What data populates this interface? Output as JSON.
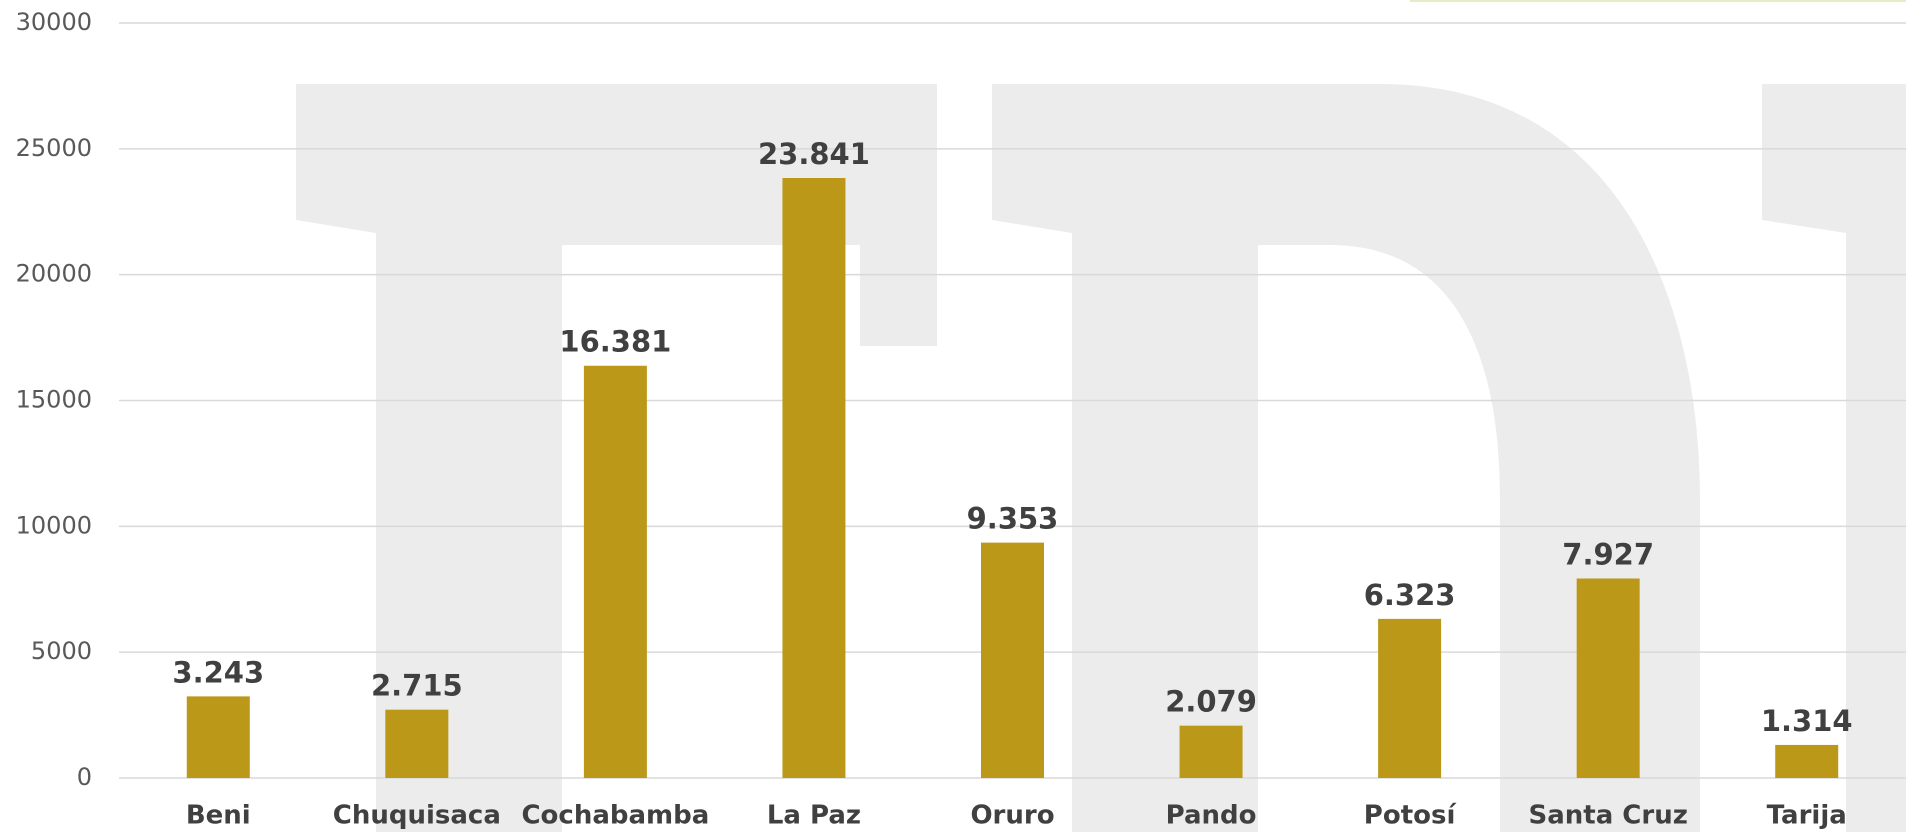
{
  "chart_data": {
    "type": "bar",
    "categories": [
      "Beni",
      "Chuquisaca",
      "Cochabamba",
      "La Paz",
      "Oruro",
      "Pando",
      "Potosí",
      "Santa Cruz",
      "Tarija"
    ],
    "values": [
      3243,
      2715,
      16381,
      23841,
      9353,
      2079,
      6323,
      7927,
      1314
    ],
    "value_labels": [
      "3.243",
      "2.715",
      "16.381",
      "23.841",
      "9.353",
      "2.079",
      "6.323",
      "7.927",
      "1.314"
    ],
    "color": "#bc9818",
    "ylim": [
      0,
      30000
    ],
    "yticks": [
      0,
      5000,
      10000,
      15000,
      20000,
      25000,
      30000
    ],
    "grid": true
  }
}
